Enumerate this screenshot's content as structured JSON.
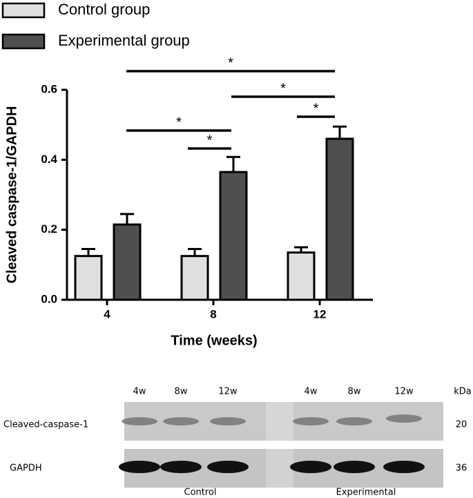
{
  "chart_data": {
    "type": "bar",
    "categories": [
      "4",
      "8",
      "12"
    ],
    "series": [
      {
        "name": "Control group",
        "color": "#e0e0e0",
        "values": [
          0.125,
          0.125,
          0.135
        ],
        "errors": [
          0.02,
          0.02,
          0.015
        ]
      },
      {
        "name": "Experimental group",
        "color": "#4f4f4f",
        "values": [
          0.215,
          0.365,
          0.46
        ],
        "errors": [
          0.03,
          0.043,
          0.035
        ]
      }
    ],
    "ylim": [
      0,
      0.6
    ],
    "yticks": [
      {
        "value": 0,
        "label": "0.0"
      },
      0.2,
      0.4,
      0.6
    ],
    "y_label": "Cleaved caspase-1/GAPDH",
    "x_label": "Time (weeks)",
    "annotations": [
      "*",
      "*",
      "*",
      "*",
      "*"
    ]
  },
  "blot": {
    "lanes": [
      "4w",
      "8w",
      "12w",
      "4w",
      "8w",
      "12w"
    ],
    "unit": "kDa",
    "rows": [
      {
        "label": "Cleaved-caspase-1",
        "kda": 20
      },
      {
        "label": "GAPDH",
        "kda": 36
      }
    ],
    "groups": [
      "Control",
      "Experimental"
    ]
  }
}
